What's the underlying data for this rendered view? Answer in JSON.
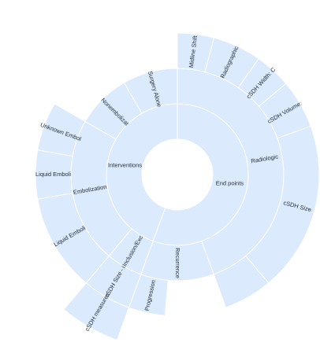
{
  "colors": {
    "segment_fill": "#dbeafc",
    "segment_stroke": "#ffffff",
    "label": "#1f2a36",
    "background": "#ffffff"
  },
  "chart_data": {
    "type": "sunburst",
    "start_angle_deg": -90,
    "rings": [
      [
        {
          "label": "End points",
          "start": 0,
          "end": 200
        },
        {
          "label": "Interventions",
          "start": 200,
          "end": 360
        }
      ],
      [
        {
          "label": "Radiologic",
          "start": 0,
          "end": 160
        },
        {
          "label": "Recurrence",
          "start": 160,
          "end": 200
        },
        {
          "label": "Inclusion/Exc",
          "start": 200,
          "end": 220
        },
        {
          "label": "Embolization",
          "start": 220,
          "end": 300
        },
        {
          "label": "Nonembolizat",
          "start": 300,
          "end": 330
        },
        {
          "label": "Surgery Alone",
          "start": 330,
          "end": 360
        }
      ],
      [
        {
          "label": "Progression",
          "start": 185,
          "end": 200
        },
        {
          "label": "cSDH Size - i",
          "start": 200,
          "end": 220
        },
        {
          "label": "Liquid Emboli",
          "start": 220,
          "end": 260
        },
        {
          "label": "Liquid Emboli",
          "start": 260,
          "end": 280
        },
        {
          "label": "Unknown Embol",
          "start": 280,
          "end": 300
        },
        {
          "label": "Midline Shift",
          "start": 0,
          "end": 15
        },
        {
          "label": "Radiographic",
          "start": 15,
          "end": 35
        },
        {
          "label": "cSDH Width: C",
          "start": 35,
          "end": 50
        },
        {
          "label": "cSDH Volume:",
          "start": 50,
          "end": 70
        },
        {
          "label": "cSDH Size",
          "start": 70,
          "end": 140
        },
        {
          "label": "",
          "start": 140,
          "end": 160
        }
      ],
      [
        {
          "label": "cSDH measures",
          "start": 200,
          "end": 220
        }
      ]
    ]
  }
}
